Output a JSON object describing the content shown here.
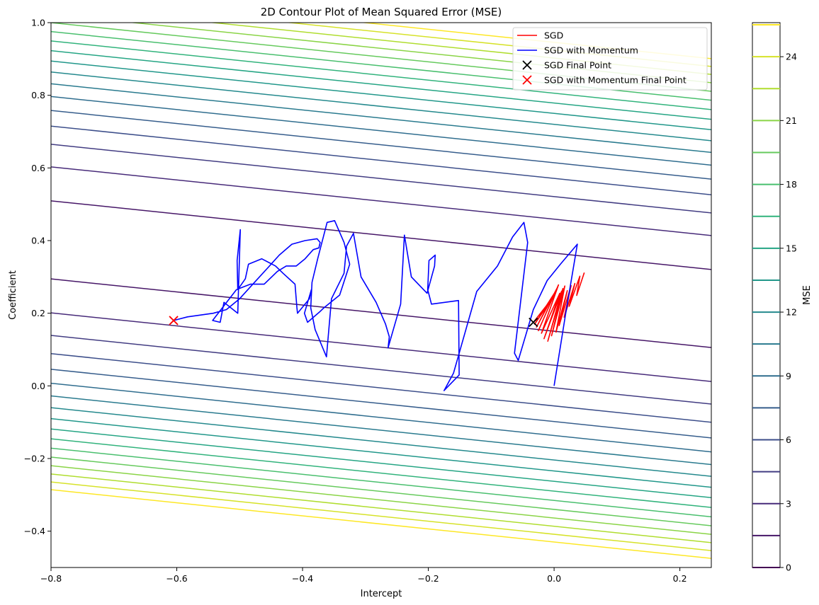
{
  "chart_data": {
    "type": "contour",
    "title": "2D Contour Plot of Mean Squared Error (MSE)",
    "xlabel": "Intercept",
    "ylabel": "Coefficient",
    "xlim": [
      -0.8,
      0.25
    ],
    "ylim": [
      -0.5,
      1.0
    ],
    "x_ticks": [
      -0.8,
      -0.6,
      -0.4,
      -0.2,
      0.0,
      0.2
    ],
    "x_tick_labels": [
      "−0.8",
      "−0.6",
      "−0.4",
      "−0.2",
      "0.0",
      "0.2"
    ],
    "y_ticks": [
      -0.4,
      -0.2,
      0.0,
      0.2,
      0.4,
      0.6,
      0.8,
      1.0
    ],
    "y_tick_labels": [
      "−0.4",
      "−0.2",
      "0.0",
      "0.2",
      "0.4",
      "0.6",
      "0.8",
      "1.0"
    ],
    "grid": false,
    "legend_position": "top-right",
    "colorbar": {
      "label": "MSE",
      "levels": [
        0,
        1.5,
        3,
        4.5,
        6,
        7.5,
        9,
        10.5,
        12,
        13.5,
        15,
        16.5,
        18,
        19.5,
        21,
        22.5,
        24,
        25.5
      ],
      "ticks": [
        0,
        3,
        6,
        9,
        12,
        15,
        18,
        21,
        24
      ],
      "tick_labels": [
        "0",
        "3",
        "6",
        "9",
        "12",
        "15",
        "18",
        "21",
        "24"
      ],
      "colormap": "viridis"
    },
    "contour_model": {
      "mse_min": 0.9,
      "valley_slope_db_dw": -0.18,
      "valley_b_at_w0": 0.258,
      "curvature": 52.0
    },
    "series": [
      {
        "name": "SGD",
        "kind": "line",
        "color": "#ff0000",
        "x": [
          0.048,
          0.036,
          0.041,
          0.024,
          0.033,
          0.016,
          0.027,
          0.008,
          0.021,
          0.003,
          0.017,
          -0.004,
          0.014,
          -0.01,
          0.012,
          -0.016,
          0.009,
          -0.02,
          0.007,
          -0.025,
          0.005,
          -0.028,
          0.003,
          -0.031,
          0.001,
          -0.033
        ],
        "y": [
          0.312,
          0.249,
          0.302,
          0.219,
          0.282,
          0.189,
          0.276,
          0.166,
          0.262,
          0.148,
          0.275,
          0.138,
          0.268,
          0.123,
          0.261,
          0.13,
          0.255,
          0.145,
          0.278,
          0.152,
          0.27,
          0.162,
          0.262,
          0.17,
          0.25,
          0.175
        ]
      },
      {
        "name": "SGD with Momentum",
        "kind": "line",
        "color": "#0000ff",
        "x": [
          0.0,
          0.018,
          0.037,
          0.01,
          -0.011,
          -0.033,
          -0.057,
          -0.063,
          -0.042,
          -0.048,
          -0.066,
          -0.09,
          -0.123,
          -0.16,
          -0.175,
          -0.165,
          -0.151,
          -0.152,
          -0.195,
          -0.201,
          -0.199,
          -0.189,
          -0.19,
          -0.202,
          -0.227,
          -0.238,
          -0.244,
          -0.264,
          -0.262,
          -0.268,
          -0.283,
          -0.307,
          -0.319,
          -0.33,
          -0.334,
          -0.354,
          -0.362,
          -0.38,
          -0.387,
          -0.385,
          -0.376,
          -0.361,
          -0.349,
          -0.334,
          -0.325,
          -0.341,
          -0.366,
          -0.372,
          -0.392,
          -0.397,
          -0.386,
          -0.389,
          -0.408,
          -0.409,
          -0.412,
          -0.431,
          -0.443,
          -0.465,
          -0.486,
          -0.491,
          -0.503,
          -0.504,
          -0.499,
          -0.503,
          -0.525,
          -0.531,
          -0.543,
          -0.523,
          -0.505,
          -0.483,
          -0.461,
          -0.44,
          -0.426,
          -0.418,
          -0.41,
          -0.396,
          -0.383,
          -0.374,
          -0.372,
          -0.377,
          -0.396,
          -0.417,
          -0.437,
          -0.458,
          -0.479,
          -0.5,
          -0.521,
          -0.542,
          -0.562,
          -0.583,
          -0.605
        ],
        "y": [
          0.0,
          0.195,
          0.39,
          0.335,
          0.29,
          0.21,
          0.07,
          0.09,
          0.395,
          0.45,
          0.41,
          0.33,
          0.26,
          0.035,
          -0.013,
          0.005,
          0.03,
          0.235,
          0.225,
          0.265,
          0.345,
          0.36,
          0.33,
          0.255,
          0.3,
          0.415,
          0.225,
          0.105,
          0.135,
          0.17,
          0.23,
          0.3,
          0.42,
          0.385,
          0.31,
          0.24,
          0.08,
          0.155,
          0.215,
          0.285,
          0.35,
          0.45,
          0.455,
          0.395,
          0.335,
          0.25,
          0.215,
          0.205,
          0.175,
          0.2,
          0.265,
          0.24,
          0.2,
          0.215,
          0.28,
          0.31,
          0.33,
          0.35,
          0.335,
          0.295,
          0.265,
          0.345,
          0.43,
          0.2,
          0.23,
          0.175,
          0.18,
          0.225,
          0.265,
          0.28,
          0.28,
          0.315,
          0.33,
          0.33,
          0.33,
          0.35,
          0.375,
          0.38,
          0.395,
          0.405,
          0.4,
          0.39,
          0.36,
          0.32,
          0.28,
          0.24,
          0.21,
          0.2,
          0.195,
          0.19,
          0.18
        ]
      },
      {
        "name": "SGD Final Point",
        "kind": "marker",
        "marker": "x",
        "color": "#000000",
        "x": [
          -0.033
        ],
        "y": [
          0.175
        ]
      },
      {
        "name": "SGD with Momentum Final Point",
        "kind": "marker",
        "marker": "x",
        "color": "#ff0000",
        "x": [
          -0.605
        ],
        "y": [
          0.18
        ]
      }
    ]
  }
}
